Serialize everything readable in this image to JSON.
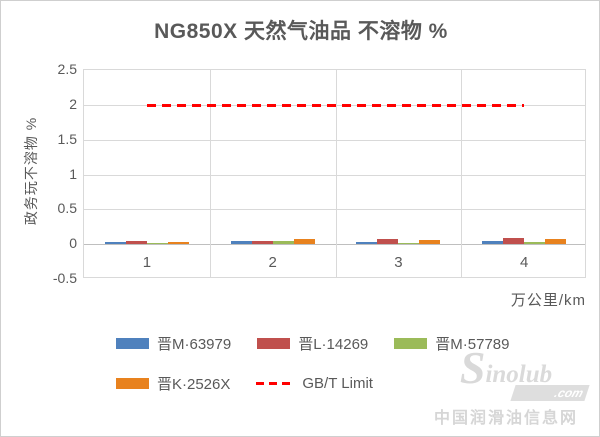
{
  "chart_data": {
    "type": "bar",
    "title": "NG850X 天然气油品 不溶物 %",
    "ylabel": "政务玩不溶物 %",
    "xlabel": "万公里/km",
    "categories": [
      "1",
      "2",
      "3",
      "4"
    ],
    "series": [
      {
        "name": "晋M·63979",
        "color": "#4F81BD",
        "values": [
          0.03,
          0.05,
          0.03,
          0.04
        ]
      },
      {
        "name": "晋L·14269",
        "color": "#C0504D",
        "values": [
          0.05,
          0.05,
          0.08,
          0.09
        ]
      },
      {
        "name": "晋M·57789",
        "color": "#9BBB59",
        "values": [
          0.02,
          0.04,
          0.02,
          0.03
        ]
      },
      {
        "name": "晋K·2526X",
        "color": "#E8821E",
        "values": [
          0.03,
          0.07,
          0.06,
          0.07
        ]
      }
    ],
    "limit_line": {
      "name": "GB/T Limit",
      "value": 2.0,
      "color": "#FF0000",
      "style": "dashed"
    },
    "ylim": [
      -0.5,
      2.5
    ],
    "ytick_step": 0.5,
    "yticks": [
      "2.5",
      "2",
      "1.5",
      "1",
      "0.5",
      "0",
      "-0.5"
    ],
    "grid": true,
    "legend_position": "bottom"
  },
  "watermark": {
    "initial": "S",
    "script": "inolub",
    "com": ".com",
    "caption": "中国润滑油信息网"
  }
}
